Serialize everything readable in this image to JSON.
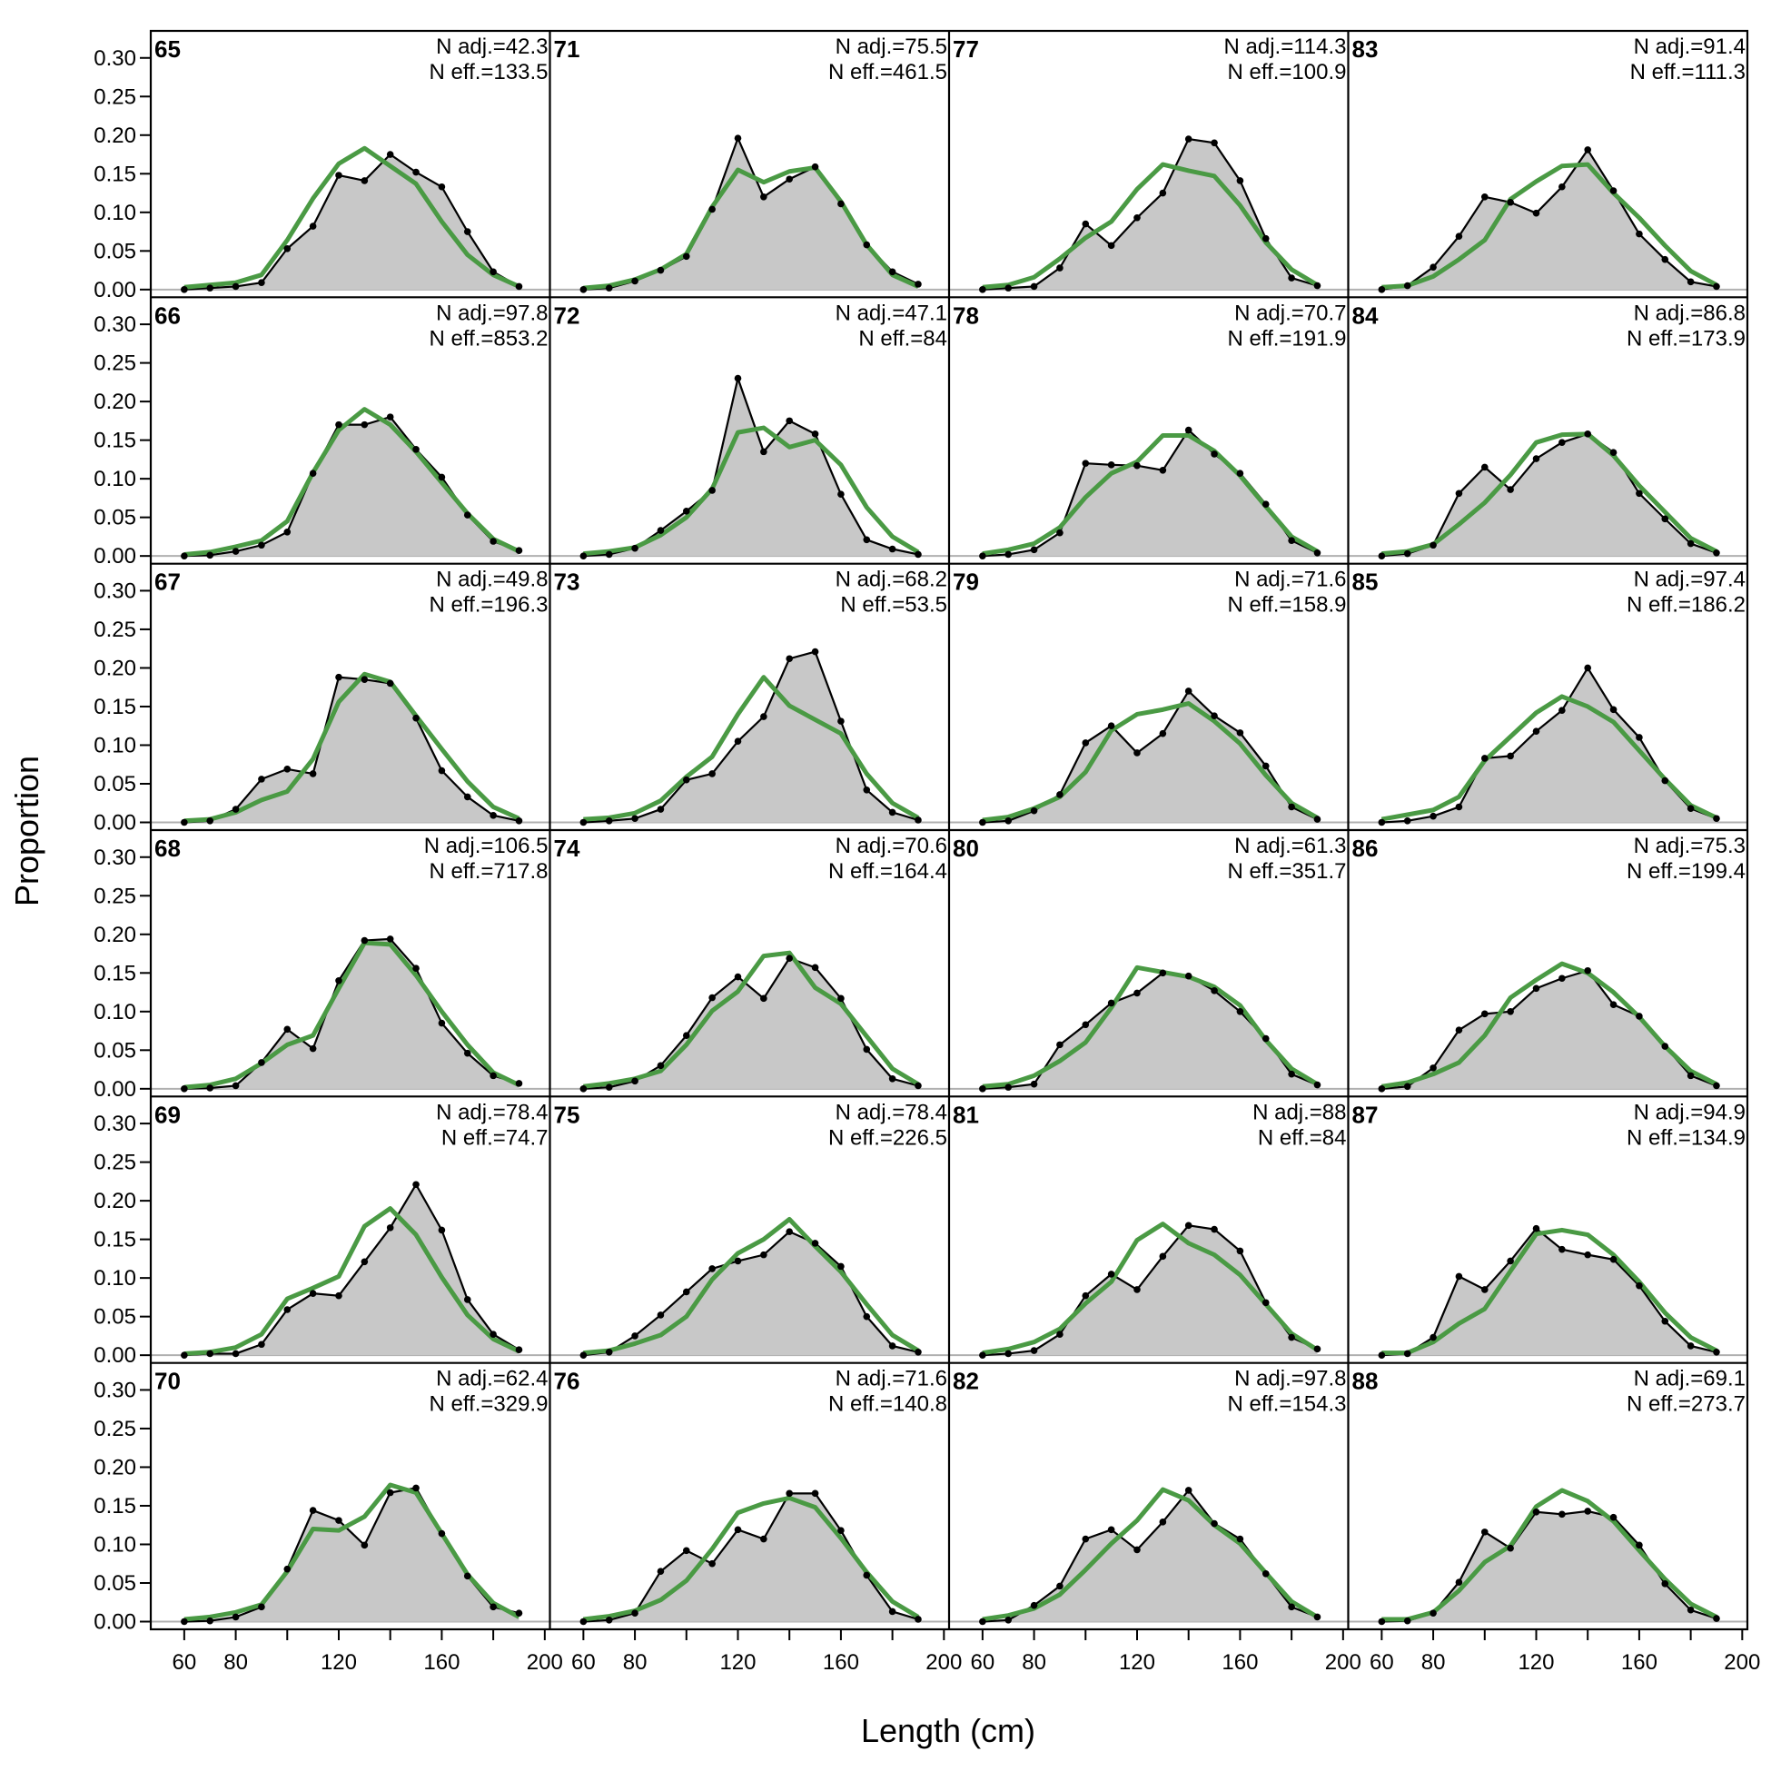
{
  "chart_data": {
    "type": "area",
    "xlabel": "Length (cm)",
    "ylabel": "Proportion",
    "xlim": [
      47,
      202
    ],
    "ylim": [
      -0.01,
      0.335
    ],
    "x_ticks": [
      60,
      80,
      120,
      160,
      200
    ],
    "y_ticks": [
      0.0,
      0.05,
      0.1,
      0.15,
      0.2,
      0.25,
      0.3
    ],
    "y_tick_labels": [
      "0.00",
      "0.05",
      "0.10",
      "0.15",
      "0.20",
      "0.25",
      "0.30"
    ],
    "x_tick_labels": [
      "60",
      "80",
      "120",
      "160",
      "200"
    ],
    "grid_columns": 4,
    "grid_rows": 6,
    "x": [
      60,
      70,
      80,
      90,
      100,
      110,
      120,
      130,
      140,
      150,
      160,
      170,
      180,
      190
    ],
    "colors": {
      "observed_fill": "#c8c8c8",
      "observed_line": "#000000",
      "expected_line": "#4a9a44",
      "zero_line": "#b0b0b0"
    },
    "series_roles": [
      "observed",
      "expected"
    ],
    "panels": [
      {
        "label": "65",
        "n_adj": "N adj.=42.3",
        "n_eff": "N eff.=133.5",
        "observed": [
          0.0,
          0.002,
          0.004,
          0.009,
          0.053,
          0.082,
          0.148,
          0.141,
          0.175,
          0.152,
          0.133,
          0.075,
          0.023,
          0.004
        ],
        "expected": [
          0.003,
          0.006,
          0.009,
          0.019,
          0.064,
          0.118,
          0.163,
          0.183,
          0.16,
          0.137,
          0.088,
          0.045,
          0.019,
          0.004
        ]
      },
      {
        "label": "66",
        "n_adj": "N adj.=97.8",
        "n_eff": "N eff.=853.2",
        "observed": [
          0.0,
          0.001,
          0.006,
          0.014,
          0.031,
          0.107,
          0.17,
          0.17,
          0.18,
          0.138,
          0.102,
          0.053,
          0.019,
          0.007
        ],
        "expected": [
          0.002,
          0.005,
          0.012,
          0.02,
          0.045,
          0.108,
          0.163,
          0.19,
          0.17,
          0.135,
          0.095,
          0.055,
          0.022,
          0.006
        ]
      },
      {
        "label": "67",
        "n_adj": "N adj.=49.8",
        "n_eff": "N eff.=196.3",
        "observed": [
          0.0,
          0.002,
          0.017,
          0.056,
          0.069,
          0.063,
          0.188,
          0.185,
          0.18,
          0.135,
          0.067,
          0.033,
          0.009,
          0.002
        ],
        "expected": [
          0.002,
          0.004,
          0.013,
          0.029,
          0.04,
          0.082,
          0.156,
          0.192,
          0.182,
          0.138,
          0.095,
          0.053,
          0.02,
          0.005
        ]
      },
      {
        "label": "68",
        "n_adj": "N adj.=106.5",
        "n_eff": "N eff.=717.8",
        "observed": [
          0.0,
          0.001,
          0.004,
          0.034,
          0.077,
          0.052,
          0.14,
          0.192,
          0.194,
          0.156,
          0.085,
          0.046,
          0.017,
          0.007
        ],
        "expected": [
          0.002,
          0.005,
          0.013,
          0.033,
          0.057,
          0.069,
          0.13,
          0.189,
          0.187,
          0.147,
          0.1,
          0.057,
          0.021,
          0.005
        ]
      },
      {
        "label": "69",
        "n_adj": "N adj.=78.4",
        "n_eff": "N eff.=74.7",
        "observed": [
          0.0,
          0.002,
          0.002,
          0.014,
          0.059,
          0.08,
          0.077,
          0.121,
          0.165,
          0.221,
          0.162,
          0.072,
          0.027,
          0.007
        ],
        "expected": [
          0.002,
          0.004,
          0.01,
          0.027,
          0.073,
          0.087,
          0.102,
          0.167,
          0.19,
          0.156,
          0.101,
          0.052,
          0.021,
          0.005
        ]
      },
      {
        "label": "70",
        "n_adj": "N adj.=62.4",
        "n_eff": "N eff.=329.9",
        "observed": [
          0.0,
          0.001,
          0.006,
          0.019,
          0.068,
          0.144,
          0.131,
          0.099,
          0.167,
          0.173,
          0.114,
          0.059,
          0.019,
          0.011
        ],
        "expected": [
          0.003,
          0.006,
          0.012,
          0.022,
          0.065,
          0.12,
          0.118,
          0.136,
          0.177,
          0.167,
          0.114,
          0.061,
          0.024,
          0.006
        ]
      },
      {
        "label": "71",
        "n_adj": "N adj.=75.5",
        "n_eff": "N eff.=461.5",
        "observed": [
          0.0,
          0.002,
          0.011,
          0.025,
          0.043,
          0.104,
          0.196,
          0.12,
          0.143,
          0.159,
          0.111,
          0.058,
          0.023,
          0.007
        ],
        "expected": [
          0.002,
          0.005,
          0.013,
          0.026,
          0.046,
          0.107,
          0.155,
          0.139,
          0.153,
          0.158,
          0.114,
          0.058,
          0.019,
          0.004
        ]
      },
      {
        "label": "72",
        "n_adj": "N adj.=47.1",
        "n_eff": "N eff.=84",
        "observed": [
          0.0,
          0.002,
          0.01,
          0.033,
          0.058,
          0.085,
          0.23,
          0.135,
          0.175,
          0.158,
          0.08,
          0.021,
          0.009,
          0.002
        ],
        "expected": [
          0.003,
          0.006,
          0.011,
          0.027,
          0.05,
          0.087,
          0.16,
          0.166,
          0.141,
          0.15,
          0.118,
          0.063,
          0.025,
          0.005
        ]
      },
      {
        "label": "73",
        "n_adj": "N adj.=68.2",
        "n_eff": "N eff.=53.5",
        "observed": [
          0.0,
          0.002,
          0.005,
          0.017,
          0.055,
          0.063,
          0.105,
          0.137,
          0.212,
          0.221,
          0.131,
          0.042,
          0.013,
          0.003
        ],
        "expected": [
          0.004,
          0.006,
          0.012,
          0.028,
          0.059,
          0.085,
          0.14,
          0.188,
          0.151,
          0.133,
          0.115,
          0.063,
          0.025,
          0.006
        ]
      },
      {
        "label": "74",
        "n_adj": "N adj.=70.6",
        "n_eff": "N eff.=164.4",
        "observed": [
          0.0,
          0.002,
          0.01,
          0.03,
          0.069,
          0.118,
          0.145,
          0.117,
          0.169,
          0.157,
          0.117,
          0.051,
          0.013,
          0.004
        ],
        "expected": [
          0.003,
          0.007,
          0.013,
          0.023,
          0.057,
          0.101,
          0.126,
          0.172,
          0.176,
          0.131,
          0.11,
          0.068,
          0.026,
          0.006
        ]
      },
      {
        "label": "75",
        "n_adj": "N adj.=78.4",
        "n_eff": "N eff.=226.5",
        "observed": [
          0.0,
          0.004,
          0.025,
          0.052,
          0.082,
          0.112,
          0.122,
          0.13,
          0.16,
          0.145,
          0.115,
          0.05,
          0.012,
          0.004
        ],
        "expected": [
          0.003,
          0.006,
          0.015,
          0.026,
          0.05,
          0.098,
          0.132,
          0.15,
          0.176,
          0.141,
          0.108,
          0.066,
          0.026,
          0.006
        ]
      },
      {
        "label": "76",
        "n_adj": "N adj.=71.6",
        "n_eff": "N eff.=140.8",
        "observed": [
          0.0,
          0.002,
          0.011,
          0.065,
          0.092,
          0.075,
          0.119,
          0.107,
          0.166,
          0.166,
          0.118,
          0.06,
          0.013,
          0.003
        ],
        "expected": [
          0.003,
          0.007,
          0.014,
          0.028,
          0.053,
          0.094,
          0.141,
          0.153,
          0.16,
          0.148,
          0.108,
          0.064,
          0.026,
          0.006
        ]
      },
      {
        "label": "77",
        "n_adj": "N adj.=114.3",
        "n_eff": "N eff.=100.9",
        "observed": [
          0.0,
          0.002,
          0.004,
          0.028,
          0.085,
          0.057,
          0.093,
          0.125,
          0.195,
          0.19,
          0.141,
          0.066,
          0.015,
          0.005
        ],
        "expected": [
          0.003,
          0.006,
          0.016,
          0.04,
          0.067,
          0.088,
          0.13,
          0.162,
          0.154,
          0.147,
          0.109,
          0.061,
          0.026,
          0.006
        ]
      },
      {
        "label": "78",
        "n_adj": "N adj.=70.7",
        "n_eff": "N eff.=191.9",
        "observed": [
          0.0,
          0.002,
          0.008,
          0.03,
          0.12,
          0.118,
          0.117,
          0.111,
          0.163,
          0.132,
          0.107,
          0.067,
          0.02,
          0.004
        ],
        "expected": [
          0.003,
          0.008,
          0.016,
          0.037,
          0.076,
          0.107,
          0.122,
          0.156,
          0.156,
          0.136,
          0.104,
          0.064,
          0.025,
          0.006
        ]
      },
      {
        "label": "79",
        "n_adj": "N adj.=71.6",
        "n_eff": "N eff.=158.9",
        "observed": [
          0.0,
          0.002,
          0.015,
          0.036,
          0.103,
          0.125,
          0.09,
          0.115,
          0.17,
          0.138,
          0.116,
          0.073,
          0.02,
          0.004
        ],
        "expected": [
          0.003,
          0.007,
          0.018,
          0.033,
          0.065,
          0.119,
          0.14,
          0.146,
          0.154,
          0.131,
          0.102,
          0.061,
          0.025,
          0.006
        ]
      },
      {
        "label": "80",
        "n_adj": "N adj.=61.3",
        "n_eff": "N eff.=351.7",
        "observed": [
          0.0,
          0.002,
          0.006,
          0.057,
          0.083,
          0.111,
          0.124,
          0.15,
          0.146,
          0.127,
          0.1,
          0.065,
          0.019,
          0.005
        ],
        "expected": [
          0.003,
          0.006,
          0.017,
          0.036,
          0.06,
          0.105,
          0.157,
          0.151,
          0.145,
          0.132,
          0.108,
          0.063,
          0.026,
          0.006
        ]
      },
      {
        "label": "81",
        "n_adj": "N adj.=88",
        "n_eff": "N eff.=84",
        "observed": [
          0.0,
          0.002,
          0.006,
          0.027,
          0.077,
          0.105,
          0.085,
          0.128,
          0.168,
          0.163,
          0.135,
          0.068,
          0.023,
          0.008
        ],
        "expected": [
          0.003,
          0.008,
          0.017,
          0.034,
          0.067,
          0.095,
          0.149,
          0.17,
          0.145,
          0.13,
          0.104,
          0.066,
          0.028,
          0.007
        ]
      },
      {
        "label": "82",
        "n_adj": "N adj.=97.8",
        "n_eff": "N eff.=154.3",
        "observed": [
          0.0,
          0.002,
          0.021,
          0.046,
          0.107,
          0.119,
          0.093,
          0.129,
          0.17,
          0.127,
          0.107,
          0.062,
          0.019,
          0.006
        ],
        "expected": [
          0.003,
          0.008,
          0.017,
          0.035,
          0.067,
          0.101,
          0.131,
          0.171,
          0.157,
          0.125,
          0.101,
          0.063,
          0.026,
          0.006
        ]
      },
      {
        "label": "83",
        "n_adj": "N adj.=91.4",
        "n_eff": "N eff.=111.3",
        "observed": [
          0.0,
          0.005,
          0.029,
          0.069,
          0.12,
          0.113,
          0.099,
          0.133,
          0.181,
          0.128,
          0.072,
          0.039,
          0.01,
          0.004
        ],
        "expected": [
          0.003,
          0.005,
          0.017,
          0.039,
          0.064,
          0.117,
          0.14,
          0.16,
          0.162,
          0.125,
          0.093,
          0.057,
          0.024,
          0.006
        ]
      },
      {
        "label": "84",
        "n_adj": "N adj.=86.8",
        "n_eff": "N eff.=173.9",
        "observed": [
          0.0,
          0.003,
          0.014,
          0.081,
          0.115,
          0.086,
          0.126,
          0.147,
          0.158,
          0.134,
          0.081,
          0.048,
          0.016,
          0.004
        ],
        "expected": [
          0.003,
          0.006,
          0.015,
          0.041,
          0.069,
          0.105,
          0.147,
          0.157,
          0.158,
          0.13,
          0.091,
          0.057,
          0.023,
          0.006
        ]
      },
      {
        "label": "85",
        "n_adj": "N adj.=97.4",
        "n_eff": "N eff.=186.2",
        "observed": [
          0.0,
          0.002,
          0.008,
          0.02,
          0.083,
          0.086,
          0.118,
          0.145,
          0.2,
          0.146,
          0.11,
          0.054,
          0.018,
          0.005
        ],
        "expected": [
          0.004,
          0.01,
          0.016,
          0.033,
          0.08,
          0.111,
          0.142,
          0.163,
          0.15,
          0.13,
          0.093,
          0.056,
          0.022,
          0.006
        ]
      },
      {
        "label": "86",
        "n_adj": "N adj.=75.3",
        "n_eff": "N eff.=199.4",
        "observed": [
          0.0,
          0.003,
          0.027,
          0.076,
          0.097,
          0.1,
          0.13,
          0.143,
          0.153,
          0.109,
          0.094,
          0.055,
          0.017,
          0.004
        ],
        "expected": [
          0.003,
          0.008,
          0.019,
          0.034,
          0.069,
          0.118,
          0.141,
          0.162,
          0.15,
          0.125,
          0.093,
          0.055,
          0.023,
          0.006
        ]
      },
      {
        "label": "87",
        "n_adj": "N adj.=94.9",
        "n_eff": "N eff.=134.9",
        "observed": [
          0.0,
          0.002,
          0.023,
          0.102,
          0.085,
          0.122,
          0.164,
          0.137,
          0.13,
          0.124,
          0.09,
          0.044,
          0.012,
          0.004
        ],
        "expected": [
          0.003,
          0.003,
          0.017,
          0.041,
          0.06,
          0.109,
          0.157,
          0.162,
          0.156,
          0.13,
          0.095,
          0.055,
          0.023,
          0.006
        ]
      },
      {
        "label": "88",
        "n_adj": "N adj.=69.1",
        "n_eff": "N eff.=273.7",
        "observed": [
          0.0,
          0.001,
          0.011,
          0.051,
          0.116,
          0.095,
          0.142,
          0.139,
          0.143,
          0.135,
          0.099,
          0.049,
          0.015,
          0.004
        ],
        "expected": [
          0.003,
          0.003,
          0.012,
          0.04,
          0.077,
          0.098,
          0.149,
          0.17,
          0.156,
          0.13,
          0.092,
          0.055,
          0.023,
          0.006
        ]
      }
    ]
  }
}
